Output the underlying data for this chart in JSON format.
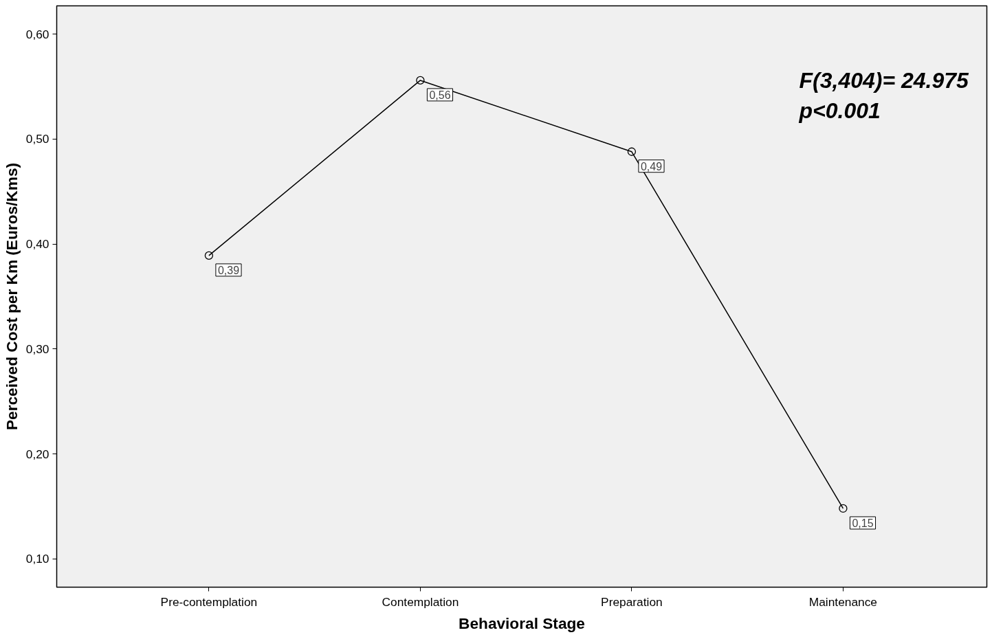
{
  "chart_data": {
    "type": "line",
    "xlabel": "Behavioral Stage",
    "ylabel": "Perceived Cost per Km (Euros/Kms)",
    "categories": [
      "Pre-contemplation",
      "Contemplation",
      "Preparation",
      "Maintenance"
    ],
    "series": [
      {
        "color": "#000000",
        "values": [
          0.389,
          0.556,
          0.488,
          0.148
        ],
        "value_labels": [
          "0,39",
          "0,56",
          "0,49",
          "0,15"
        ]
      }
    ],
    "ylim": [
      0.073,
      0.627
    ],
    "yticks": [
      {
        "value": 0.1,
        "label": "0,10"
      },
      {
        "value": 0.2,
        "label": "0,20"
      },
      {
        "value": 0.3,
        "label": "0,30"
      },
      {
        "value": 0.4,
        "label": "0,40"
      },
      {
        "value": 0.5,
        "label": "0,50"
      },
      {
        "value": 0.6,
        "label": "0,60"
      }
    ],
    "annotations": [
      "F(3,404)= 24.975",
      "p<0.001"
    ],
    "grid": false,
    "marker": "circle",
    "line_style": "solid"
  }
}
